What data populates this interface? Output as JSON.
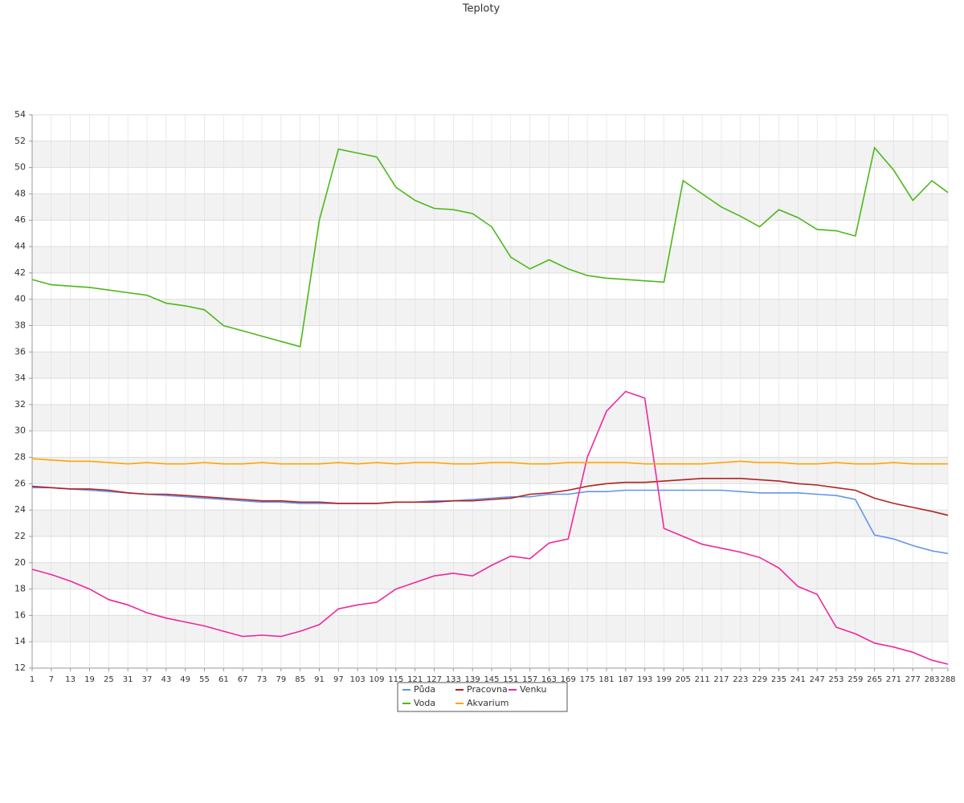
{
  "chart_data": {
    "type": "line",
    "title": "Teploty",
    "x": [
      1,
      7,
      13,
      19,
      25,
      31,
      37,
      43,
      49,
      55,
      61,
      67,
      73,
      79,
      85,
      91,
      97,
      103,
      109,
      115,
      121,
      127,
      133,
      139,
      145,
      151,
      157,
      163,
      169,
      175,
      181,
      187,
      193,
      199,
      205,
      211,
      217,
      223,
      229,
      235,
      241,
      247,
      253,
      259,
      265,
      271,
      277,
      283,
      288
    ],
    "xlim": [
      1,
      288
    ],
    "ylim": [
      12,
      54
    ],
    "yticks": [
      12,
      14,
      16,
      18,
      20,
      22,
      24,
      26,
      28,
      30,
      32,
      34,
      36,
      38,
      40,
      42,
      44,
      46,
      48,
      50,
      52,
      54
    ],
    "grid": true,
    "series": [
      {
        "name": "Půda",
        "color": "#6495ed",
        "values": [
          25.7,
          25.7,
          25.6,
          25.5,
          25.4,
          25.3,
          25.2,
          25.1,
          25.0,
          24.9,
          24.8,
          24.7,
          24.6,
          24.6,
          24.5,
          24.5,
          24.5,
          24.5,
          24.5,
          24.6,
          24.6,
          24.7,
          24.7,
          24.8,
          24.9,
          25.0,
          25.0,
          25.2,
          25.2,
          25.4,
          25.4,
          25.5,
          25.5,
          25.5,
          25.5,
          25.5,
          25.5,
          25.4,
          25.3,
          25.3,
          25.3,
          25.2,
          25.1,
          24.8,
          22.1,
          21.8,
          21.3,
          20.9,
          20.7
        ]
      },
      {
        "name": "Pracovna",
        "color": "#b22222",
        "values": [
          25.8,
          25.7,
          25.6,
          25.6,
          25.5,
          25.3,
          25.2,
          25.2,
          25.1,
          25.0,
          24.9,
          24.8,
          24.7,
          24.7,
          24.6,
          24.6,
          24.5,
          24.5,
          24.5,
          24.6,
          24.6,
          24.6,
          24.7,
          24.7,
          24.8,
          24.9,
          25.2,
          25.3,
          25.5,
          25.8,
          26.0,
          26.1,
          26.1,
          26.2,
          26.3,
          26.4,
          26.4,
          26.4,
          26.3,
          26.2,
          26.0,
          25.9,
          25.7,
          25.5,
          24.9,
          24.5,
          24.2,
          23.9,
          23.6
        ]
      },
      {
        "name": "Venku",
        "color": "#f0279a",
        "values": [
          19.5,
          19.1,
          18.6,
          18.0,
          17.2,
          16.8,
          16.2,
          15.8,
          15.5,
          15.2,
          14.8,
          14.4,
          14.5,
          14.4,
          14.8,
          15.3,
          16.5,
          16.8,
          17.0,
          18.0,
          18.5,
          19.0,
          19.2,
          19.0,
          19.8,
          20.5,
          20.3,
          21.5,
          21.8,
          28.0,
          31.5,
          33.0,
          32.5,
          22.6,
          22.0,
          21.4,
          21.1,
          20.8,
          20.4,
          19.6,
          18.2,
          17.6,
          15.1,
          14.6,
          13.9,
          13.6,
          13.2,
          12.6,
          12.3
        ]
      },
      {
        "name": "Voda",
        "color": "#4cb81a",
        "values": [
          41.5,
          41.1,
          41.0,
          40.9,
          40.7,
          40.5,
          40.3,
          39.7,
          39.5,
          39.2,
          38.0,
          37.6,
          37.2,
          36.8,
          36.4,
          46.0,
          51.4,
          51.1,
          50.8,
          48.5,
          47.5,
          46.9,
          46.8,
          46.5,
          45.5,
          43.2,
          42.3,
          43.0,
          42.3,
          41.8,
          41.6,
          41.5,
          41.4,
          41.3,
          49.0,
          48.0,
          47.0,
          46.3,
          45.5,
          46.8,
          46.2,
          45.3,
          45.2,
          44.8,
          51.5,
          49.8,
          47.5,
          49.0,
          48.1
        ]
      },
      {
        "name": "Akvarium",
        "color": "#ffa500",
        "values": [
          27.9,
          27.8,
          27.7,
          27.7,
          27.6,
          27.5,
          27.6,
          27.5,
          27.5,
          27.6,
          27.5,
          27.5,
          27.6,
          27.5,
          27.5,
          27.5,
          27.6,
          27.5,
          27.6,
          27.5,
          27.6,
          27.6,
          27.5,
          27.5,
          27.6,
          27.6,
          27.5,
          27.5,
          27.6,
          27.6,
          27.6,
          27.6,
          27.5,
          27.5,
          27.5,
          27.5,
          27.6,
          27.7,
          27.6,
          27.6,
          27.5,
          27.5,
          27.6,
          27.5,
          27.5,
          27.6,
          27.5,
          27.5,
          27.5
        ]
      }
    ]
  }
}
